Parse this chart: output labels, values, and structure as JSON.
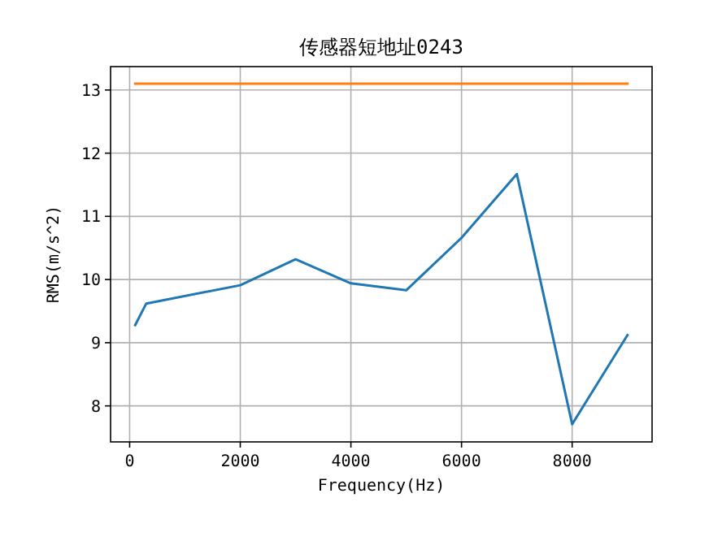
{
  "chart_data": {
    "type": "line",
    "title": "传感器短地址0243",
    "xlabel": "Frequency(Hz)",
    "ylabel": "RMS(m/s^2)",
    "xlim": [
      -345,
      9445
    ],
    "ylim": [
      7.43,
      13.37
    ],
    "xticks": [
      0,
      2000,
      4000,
      6000,
      8000
    ],
    "yticks": [
      8,
      9,
      10,
      11,
      12,
      13
    ],
    "grid": true,
    "series": [
      {
        "color": "#1f77b4",
        "x": [
          100,
          300,
          2000,
          3000,
          4000,
          5000,
          6000,
          7000,
          8000,
          9000
        ],
        "values": [
          9.28,
          9.62,
          9.91,
          10.32,
          9.94,
          9.83,
          10.66,
          11.67,
          7.71,
          9.12
        ]
      },
      {
        "color": "#ff7f0e",
        "x": [
          100,
          9000
        ],
        "values": [
          13.1,
          13.1
        ]
      }
    ]
  }
}
